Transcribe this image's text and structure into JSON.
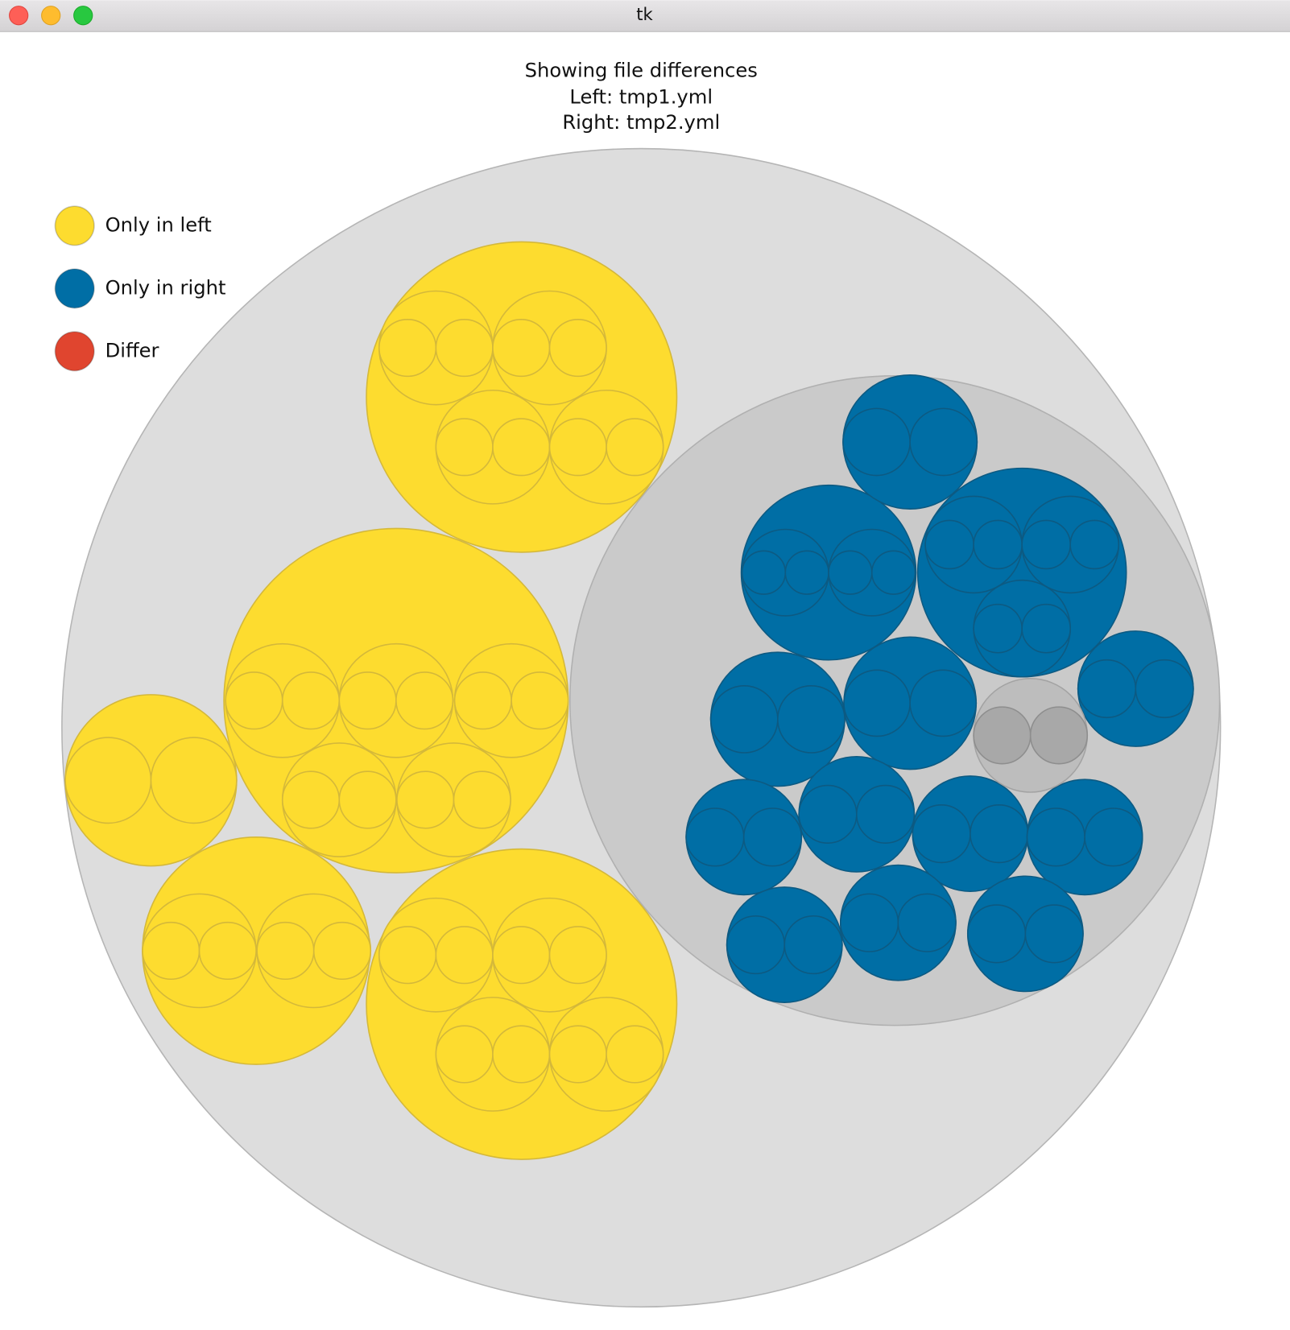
{
  "window": {
    "title": "tk"
  },
  "header": {
    "lines": [
      "Showing file differences",
      "Left: tmp1.yml",
      "Right: tmp2.yml"
    ]
  },
  "legend": [
    {
      "label": "Only in left",
      "color": "#fddc2f"
    },
    {
      "label": "Only in right",
      "color": "#006ea5"
    },
    {
      "label": "Differ",
      "color": "#e0452f"
    }
  ]
}
